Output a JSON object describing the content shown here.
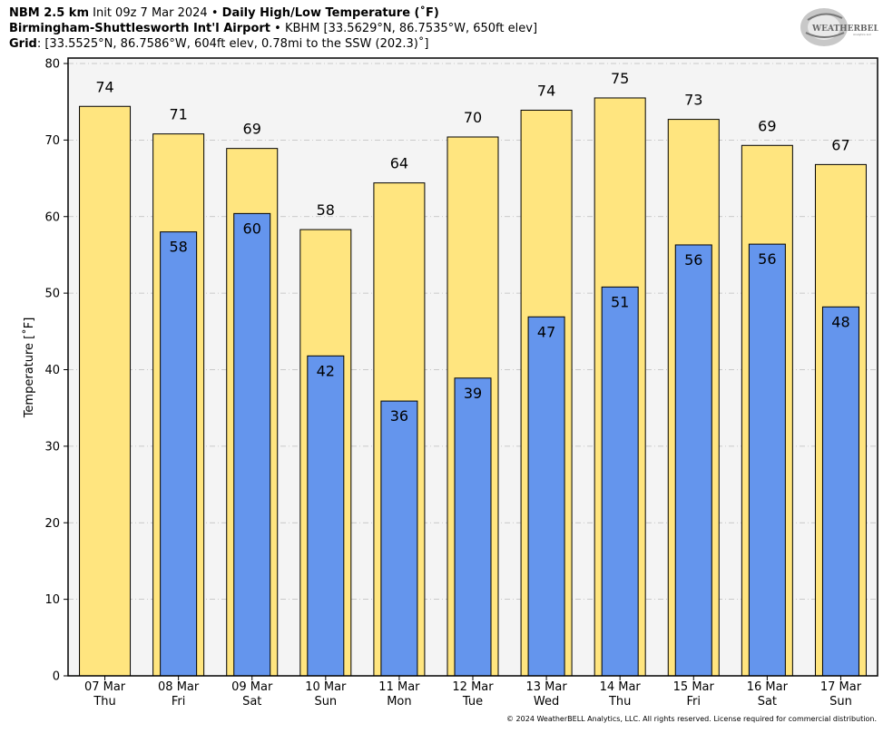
{
  "header": {
    "line1_bold": "NBM 2.5 km",
    "line1_init": "Init 09z 7 Mar 2024",
    "line1_sep": "•",
    "line1_title": "Daily High/Low Temperature (˚F)",
    "line2_station": "Birmingham-Shuttlesworth Int'l Airport",
    "line2_sep": "•",
    "line2_info": "KBHM [33.5629°N, 86.7535°W, 650ft elev]",
    "line3_label": "Grid",
    "line3_info": ": [33.5525°N, 86.7586°W, 604ft elev, 0.78mi to the SSW (202.3)˚]"
  },
  "logo": {
    "text": "WEATHERBELL",
    "subtext": "Analytics LLC"
  },
  "footer": "© 2024 WeatherBELL Analytics, LLC. All rights reserved. License required for commercial distribution.",
  "colors": {
    "high": "#FFE57F",
    "low": "#6495ED",
    "plot_bg": "#F4F4F4",
    "grid": "#BBBBBB"
  },
  "chart_data": {
    "type": "bar",
    "ylabel": "Temperature [˚F]",
    "ylim": [
      0,
      80
    ],
    "yticks": [
      0,
      10,
      20,
      30,
      40,
      50,
      60,
      70,
      80
    ],
    "grid": true,
    "categories": [
      {
        "date": "07 Mar",
        "day": "Thu"
      },
      {
        "date": "08 Mar",
        "day": "Fri"
      },
      {
        "date": "09 Mar",
        "day": "Sat"
      },
      {
        "date": "10 Mar",
        "day": "Sun"
      },
      {
        "date": "11 Mar",
        "day": "Mon"
      },
      {
        "date": "12 Mar",
        "day": "Tue"
      },
      {
        "date": "13 Mar",
        "day": "Wed"
      },
      {
        "date": "14 Mar",
        "day": "Thu"
      },
      {
        "date": "15 Mar",
        "day": "Fri"
      },
      {
        "date": "16 Mar",
        "day": "Sat"
      },
      {
        "date": "17 Mar",
        "day": "Sun"
      }
    ],
    "series": [
      {
        "values": [
          74.4,
          70.8,
          68.9,
          58.3,
          64.4,
          70.4,
          73.9,
          75.5,
          72.7,
          69.3,
          66.8
        ],
        "labels": [
          "74",
          "71",
          "69",
          "58",
          "64",
          "70",
          "74",
          "75",
          "73",
          "69",
          "67"
        ]
      },
      {
        "values": [
          null,
          58.0,
          60.4,
          41.8,
          35.9,
          38.9,
          46.9,
          50.8,
          56.3,
          56.4,
          48.2
        ],
        "labels": [
          null,
          "58",
          "60",
          "42",
          "36",
          "39",
          "47",
          "51",
          "56",
          "56",
          "48"
        ]
      }
    ]
  }
}
